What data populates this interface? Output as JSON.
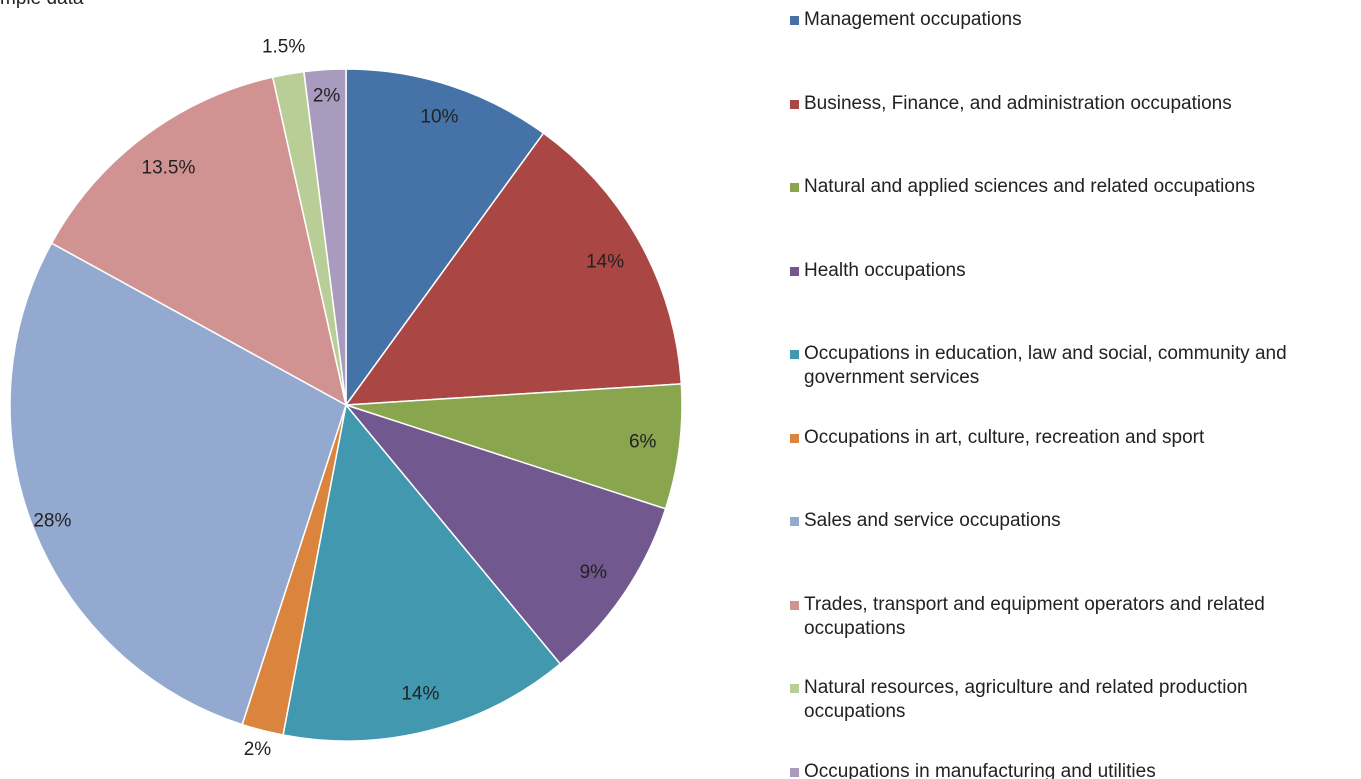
{
  "chart_data": {
    "type": "pie",
    "title": "mple data",
    "categories": [
      "Management occupations",
      "Business, Finance, and administration occupations",
      "Natural and applied sciences and related occupations",
      "Health occupations",
      "Occupations in education, law and social, community and government services",
      "Occupations in art, culture, recreation and sport",
      "Sales and service occupations",
      "Trades, transport and equipment operators and related occupations",
      "Natural resources, agriculture and related production occupations",
      "Occupations in manufacturing and utilities"
    ],
    "values": [
      10,
      14,
      6,
      9,
      14,
      2,
      28,
      13.5,
      1.5,
      2
    ],
    "value_labels": [
      "10%",
      "14%",
      "6%",
      "9%",
      "14%",
      "2%",
      "28%",
      "13.5%",
      "1.5%",
      "2%"
    ],
    "colors": [
      "#4572a7",
      "#aa4643",
      "#89a54e",
      "#71588f",
      "#4198af",
      "#db843d",
      "#93a9cf",
      "#d19392",
      "#b9cd96",
      "#a99bbd"
    ],
    "legend": "right"
  }
}
